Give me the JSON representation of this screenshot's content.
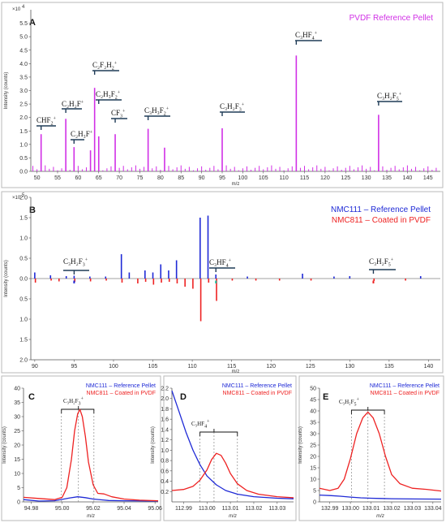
{
  "panel_letters": {
    "a": "A",
    "b": "B",
    "c": "C",
    "d": "D",
    "e": "E"
  },
  "colors": {
    "pvdf": "#d12fe6",
    "nmc111": "#1f2ad6",
    "nmc811": "#ee2222",
    "teal": "#1dbf9e"
  },
  "chart_data": [
    {
      "type": "bar",
      "panel": "A",
      "legend": [
        {
          "name": "PVDF Reference Pellet",
          "color": "#d12fe6"
        }
      ],
      "xlabel": "m/z",
      "ylabel": "Intensity (counts)",
      "y_multiplier": "×10",
      "y_multiplier_exp": "4",
      "xlim": [
        48.5,
        148
      ],
      "ylim": [
        0,
        6
      ],
      "x_ticks": [
        "50",
        "55",
        "60",
        "65",
        "70",
        "75",
        "80",
        "85",
        "90",
        "95",
        "100",
        "105",
        "110",
        "115",
        "120",
        "125",
        "130",
        "135",
        "140",
        "145"
      ],
      "y_ticks": [
        "0.0",
        "0.5",
        "1.0",
        "1.5",
        "2.0",
        "2.5",
        "3.0",
        "3.5",
        "4.0",
        "4.5",
        "5.0",
        "5.5"
      ],
      "peaks": [
        {
          "x": 51,
          "y": 1.38
        },
        {
          "x": 57,
          "y": 1.95
        },
        {
          "x": 59,
          "y": 0.9
        },
        {
          "x": 63,
          "y": 0.78
        },
        {
          "x": 64,
          "y": 3.1
        },
        {
          "x": 65,
          "y": 1.3
        },
        {
          "x": 69,
          "y": 1.38
        },
        {
          "x": 77,
          "y": 1.58
        },
        {
          "x": 81,
          "y": 0.88
        },
        {
          "x": 95,
          "y": 1.6
        },
        {
          "x": 113,
          "y": 4.3
        },
        {
          "x": 133,
          "y": 2.1
        }
      ],
      "annotations": [
        {
          "base": "CHF",
          "sub": "2",
          "sup": "+",
          "peak_x": 51
        },
        {
          "base": "C₂H₂F",
          "sub": "",
          "sup": "+",
          "peak_x": 57
        },
        {
          "base": "C₂H₃F",
          "sub": "",
          "sup": "+",
          "peak_x": 59
        },
        {
          "base": "C₂F₂H",
          "sub": "2",
          "sup": "+",
          "peak_x": 64
        },
        {
          "base": "C₂H₃F",
          "sub": "2",
          "sup": "+",
          "peak_x": 65
        },
        {
          "base": "CF",
          "sub": "3",
          "sup": "+",
          "peak_x": 69
        },
        {
          "base": "C₃H₃F",
          "sub": "2",
          "sup": "+",
          "peak_x": 77
        },
        {
          "base": "C₃H₂F",
          "sub": "3",
          "sup": "+",
          "peak_x": 95
        },
        {
          "base": "C₃HF",
          "sub": "4",
          "sup": "+",
          "peak_x": 113
        },
        {
          "base": "C₃H₂F",
          "sub": "5",
          "sup": "+",
          "peak_x": 133
        }
      ]
    },
    {
      "type": "bar",
      "panel": "B",
      "legend": [
        {
          "name": "NMC111 – Reference Pellet",
          "color": "#1f2ad6"
        },
        {
          "name": "NMC811 – Coated in PVDF",
          "color": "#ee2222"
        }
      ],
      "xlabel": "m/z",
      "ylabel": "Intensity (counts)",
      "y_multiplier": "×10",
      "y_multiplier_exp": "5",
      "xlim": [
        89.5,
        141.5
      ],
      "ylim": [
        -2.0,
        2.0
      ],
      "x_ticks": [
        "90",
        "95",
        "100",
        "105",
        "110",
        "115",
        "120",
        "125",
        "130",
        "135",
        "140"
      ],
      "y_ticks": [
        "2.0",
        "1.5",
        "1.0",
        "0.5",
        "0.0",
        "0.5",
        "1.0",
        "1.5",
        "2.0"
      ],
      "series": [
        {
          "name": "NMC111 – Reference Pellet",
          "peaks": [
            {
              "x": 90,
              "y": 0.15
            },
            {
              "x": 92,
              "y": 0.08
            },
            {
              "x": 94,
              "y": 0.06
            },
            {
              "x": 95,
              "y": 0.07
            },
            {
              "x": 97,
              "y": 0.05
            },
            {
              "x": 99,
              "y": 0.05
            },
            {
              "x": 101,
              "y": 0.6
            },
            {
              "x": 102,
              "y": 0.15
            },
            {
              "x": 104,
              "y": 0.2
            },
            {
              "x": 105,
              "y": 0.15
            },
            {
              "x": 106,
              "y": 0.35
            },
            {
              "x": 107,
              "y": 0.2
            },
            {
              "x": 108,
              "y": 0.45
            },
            {
              "x": 111,
              "y": 1.5
            },
            {
              "x": 112,
              "y": 1.55
            },
            {
              "x": 113,
              "y": 0.1
            },
            {
              "x": 117,
              "y": 0.05
            },
            {
              "x": 124,
              "y": 0.12
            },
            {
              "x": 128,
              "y": 0.05
            },
            {
              "x": 130,
              "y": 0.06
            },
            {
              "x": 139,
              "y": 0.06
            }
          ]
        },
        {
          "name": "NMC811 – Coated in PVDF",
          "peaks": [
            {
              "x": 90,
              "y": -0.1
            },
            {
              "x": 92,
              "y": -0.05
            },
            {
              "x": 93,
              "y": -0.07
            },
            {
              "x": 95,
              "y": -0.08
            },
            {
              "x": 97,
              "y": -0.07
            },
            {
              "x": 99,
              "y": -0.05
            },
            {
              "x": 101,
              "y": -0.1
            },
            {
              "x": 103,
              "y": -0.12
            },
            {
              "x": 104,
              "y": -0.08
            },
            {
              "x": 105,
              "y": -0.15
            },
            {
              "x": 106,
              "y": -0.1
            },
            {
              "x": 107,
              "y": -0.08
            },
            {
              "x": 108,
              "y": -0.12
            },
            {
              "x": 109,
              "y": -0.2
            },
            {
              "x": 110,
              "y": -0.25
            },
            {
              "x": 111,
              "y": -1.05
            },
            {
              "x": 112,
              "y": -0.1
            },
            {
              "x": 113,
              "y": -0.55
            },
            {
              "x": 115,
              "y": -0.05
            },
            {
              "x": 118,
              "y": -0.05
            },
            {
              "x": 121,
              "y": -0.05
            },
            {
              "x": 125,
              "y": -0.05
            },
            {
              "x": 133,
              "y": -0.06
            },
            {
              "x": 137,
              "y": -0.05
            }
          ]
        }
      ],
      "annotations": [
        {
          "base": "C₃H₂F",
          "sub": "3",
          "sup": "+",
          "peak_x": 95
        },
        {
          "base": "C₃HF",
          "sub": "4",
          "sup": "+",
          "peak_x": 113
        },
        {
          "base": "C₃H₂F",
          "sub": "5",
          "sup": "+",
          "peak_x": 133
        }
      ]
    },
    {
      "type": "line",
      "panel": "C",
      "legend": [
        {
          "name": "NMC111 – Reference Pellet",
          "color": "#1f2ad6"
        },
        {
          "name": "NMC811 – Coated in PVDF",
          "color": "#ee2222"
        }
      ],
      "xlabel": "m/z",
      "ylabel": "Intensity (counts)",
      "xlim": [
        94.975,
        95.062
      ],
      "ylim": [
        0,
        40
      ],
      "x_ticks": [
        94.98,
        95.0,
        95.02,
        95.04,
        95.06
      ],
      "x_tick_labels": [
        "94.98",
        "95.00",
        "95.02",
        "95.04",
        "95.06"
      ],
      "y_ticks": [
        0,
        5,
        10,
        15,
        20,
        25,
        30,
        35,
        40
      ],
      "y_tick_labels": [
        "0",
        "5",
        "10",
        "15",
        "20",
        "25",
        "30",
        "35",
        "40"
      ],
      "annotation": {
        "base": "C₃H₂F",
        "sub": "3",
        "sup": "+",
        "guides_x": [
          94.9995,
          95.0105,
          95.0205
        ]
      },
      "series": [
        {
          "name": "NMC111 – Reference Pellet",
          "points": [
            [
              94.975,
              0.8
            ],
            [
              94.985,
              0.3
            ],
            [
              94.995,
              0.4
            ],
            [
              95.0,
              0.9
            ],
            [
              95.005,
              1.4
            ],
            [
              95.01,
              1.8
            ],
            [
              95.015,
              1.5
            ],
            [
              95.02,
              1.0
            ],
            [
              95.03,
              0.5
            ],
            [
              95.04,
              0.4
            ],
            [
              95.062,
              0.3
            ]
          ]
        },
        {
          "name": "NMC811 – Coated in PVDF",
          "points": [
            [
              94.975,
              1.6
            ],
            [
              94.985,
              1.2
            ],
            [
              94.995,
              0.8
            ],
            [
              95.0,
              1.6
            ],
            [
              95.003,
              5
            ],
            [
              95.006,
              15
            ],
            [
              95.008,
              25
            ],
            [
              95.01,
              31
            ],
            [
              95.0115,
              32.5
            ],
            [
              95.013,
              30
            ],
            [
              95.015,
              23
            ],
            [
              95.017,
              14
            ],
            [
              95.02,
              6
            ],
            [
              95.023,
              3
            ],
            [
              95.027,
              2.8
            ],
            [
              95.032,
              1.8
            ],
            [
              95.04,
              1.0
            ],
            [
              95.05,
              0.6
            ],
            [
              95.062,
              0.4
            ]
          ]
        }
      ]
    },
    {
      "type": "line",
      "panel": "D",
      "legend": [
        {
          "name": "NMC111 – Reference Pellet",
          "color": "#1f2ad6"
        },
        {
          "name": "NMC811 – Coated in PVDF",
          "color": "#ee2222"
        }
      ],
      "xlabel": "m/z",
      "ylabel": "Intensity (counts)",
      "xlim": [
        112.985,
        113.037
      ],
      "ylim": [
        0,
        2.2
      ],
      "x_ticks": [
        112.99,
        113.0,
        113.01,
        113.02,
        113.03
      ],
      "x_tick_labels": [
        "112.99",
        "113.00",
        "113.01",
        "113.02",
        "113.03"
      ],
      "y_ticks": [
        0.2,
        0.4,
        0.6,
        0.8,
        1.0,
        1.2,
        1.4,
        1.6,
        1.8,
        2.0,
        2.2
      ],
      "y_tick_labels": [
        "0.2",
        "0.4",
        "0.6",
        "0.8",
        "1.0",
        "1.2",
        "1.4",
        "1.6",
        "1.8",
        "2.0",
        "2.2"
      ],
      "annotation": {
        "base": "C₃HF",
        "sub": "4",
        "sup": "+",
        "guides_x": [
          112.997,
          113.003,
          113.013
        ]
      },
      "series": [
        {
          "name": "NMC111 – Reference Pellet",
          "points": [
            [
              112.985,
              2.15
            ],
            [
              112.988,
              1.75
            ],
            [
              112.991,
              1.35
            ],
            [
              112.994,
              1.0
            ],
            [
              112.997,
              0.72
            ],
            [
              113.0,
              0.5
            ],
            [
              113.004,
              0.33
            ],
            [
              113.008,
              0.22
            ],
            [
              113.013,
              0.15
            ],
            [
              113.02,
              0.1
            ],
            [
              113.03,
              0.07
            ],
            [
              113.037,
              0.06
            ]
          ]
        },
        {
          "name": "NMC811 – Coated in PVDF",
          "points": [
            [
              112.985,
              0.22
            ],
            [
              112.99,
              0.24
            ],
            [
              112.994,
              0.3
            ],
            [
              112.997,
              0.42
            ],
            [
              113.0,
              0.62
            ],
            [
              113.002,
              0.82
            ],
            [
              113.004,
              0.94
            ],
            [
              113.006,
              0.9
            ],
            [
              113.008,
              0.75
            ],
            [
              113.01,
              0.55
            ],
            [
              113.013,
              0.35
            ],
            [
              113.017,
              0.22
            ],
            [
              113.022,
              0.15
            ],
            [
              113.03,
              0.1
            ],
            [
              113.037,
              0.08
            ]
          ]
        }
      ]
    },
    {
      "type": "line",
      "panel": "E",
      "legend": [
        {
          "name": "NMC111 – Reference Pellet",
          "color": "#1f2ad6"
        },
        {
          "name": "NMC811 – Coated in PVDF",
          "color": "#ee2222"
        }
      ],
      "xlabel": "m/z",
      "ylabel": "Intensity (counts)",
      "xlim": [
        132.985,
        133.044
      ],
      "ylim": [
        0,
        50
      ],
      "x_ticks": [
        132.99,
        133.0,
        133.01,
        133.02,
        133.03,
        133.04
      ],
      "x_tick_labels": [
        "132.99",
        "133.00",
        "133.01",
        "133.02",
        "133.03",
        "133.04"
      ],
      "y_ticks": [
        0,
        5,
        10,
        15,
        20,
        25,
        30,
        35,
        40,
        45,
        50
      ],
      "y_tick_labels": [
        "0",
        "5",
        "10",
        "15",
        "20",
        "25",
        "30",
        "35",
        "40",
        "45",
        "50"
      ],
      "annotation": {
        "base": "C₃H₂F",
        "sub": "5",
        "sup": "+",
        "guides_x": [
          133.0005,
          133.0085,
          133.0165
        ]
      },
      "series": [
        {
          "name": "NMC111 – Reference Pellet",
          "points": [
            [
              132.985,
              3.0
            ],
            [
              132.99,
              2.8
            ],
            [
              132.995,
              2.5
            ],
            [
              133.0,
              2.1
            ],
            [
              133.005,
              1.8
            ],
            [
              133.01,
              1.6
            ],
            [
              133.015,
              1.5
            ],
            [
              133.02,
              1.4
            ],
            [
              133.03,
              1.3
            ],
            [
              133.044,
              1.2
            ]
          ]
        },
        {
          "name": "NMC811 – Coated in PVDF",
          "points": [
            [
              132.985,
              6.0
            ],
            [
              132.99,
              5.0
            ],
            [
              132.994,
              6.0
            ],
            [
              132.997,
              10
            ],
            [
              133.0,
              19
            ],
            [
              133.003,
              30
            ],
            [
              133.006,
              37
            ],
            [
              133.0085,
              39.5
            ],
            [
              133.011,
              37
            ],
            [
              133.014,
              30
            ],
            [
              133.017,
              20
            ],
            [
              133.02,
              12
            ],
            [
              133.024,
              8
            ],
            [
              133.03,
              6
            ],
            [
              133.037,
              5.5
            ],
            [
              133.044,
              4.8
            ]
          ]
        }
      ]
    }
  ]
}
